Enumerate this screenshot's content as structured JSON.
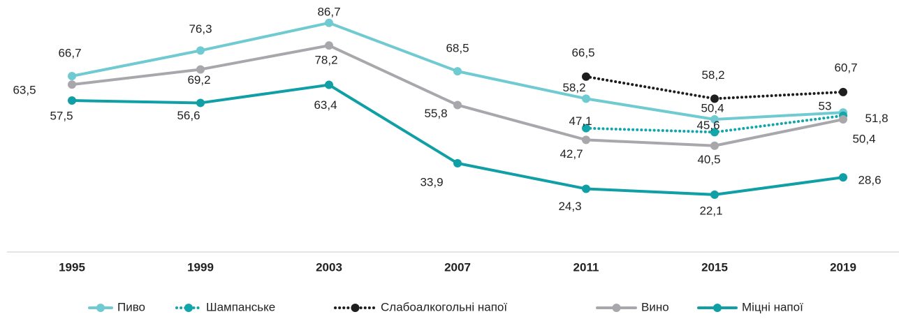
{
  "chart_data": {
    "type": "line",
    "categories": [
      "1995",
      "1999",
      "2003",
      "2007",
      "2011",
      "2015",
      "2019"
    ],
    "ylim": [
      0,
      95
    ],
    "series": [
      {
        "name": "Пиво",
        "color": "#6fcbd1",
        "style": "solid",
        "values": [
          66.7,
          76.3,
          86.7,
          68.5,
          58.2,
          50.4,
          53
        ],
        "value_labels": [
          "66,7",
          "76,3",
          "86,7",
          "68,5",
          "58,2",
          "50,4",
          "53"
        ]
      },
      {
        "name": "Шампанське",
        "color": "#12a6ab",
        "style": "dotted",
        "values": [
          null,
          null,
          null,
          null,
          47.1,
          45.6,
          51.8
        ],
        "value_labels": [
          null,
          null,
          null,
          null,
          "47,1",
          "45,6",
          "51,8"
        ]
      },
      {
        "name": "Слабоалкогольні напої",
        "color": "#1e1e1e",
        "style": "dotted",
        "values": [
          null,
          null,
          null,
          null,
          66.5,
          58.2,
          60.7
        ],
        "value_labels": [
          null,
          null,
          null,
          null,
          "66,5",
          "58,2",
          "60,7"
        ]
      },
      {
        "name": "Вино",
        "color": "#a8a8ac",
        "style": "solid",
        "values": [
          63.5,
          69.2,
          78.2,
          55.8,
          42.7,
          40.5,
          50.4
        ],
        "value_labels": [
          "63,5",
          "69,2",
          "78,2",
          "55,8",
          "42,7",
          "40,5",
          "50,4"
        ]
      },
      {
        "name": "Міцні напої",
        "color": "#0f9fa5",
        "style": "solid",
        "values": [
          57.5,
          56.6,
          63.4,
          33.9,
          24.3,
          22.1,
          28.6
        ],
        "value_labels": [
          "57,5",
          "56,6",
          "63,4",
          "33,9",
          "24,3",
          "22,1",
          "28,6"
        ]
      }
    ]
  }
}
